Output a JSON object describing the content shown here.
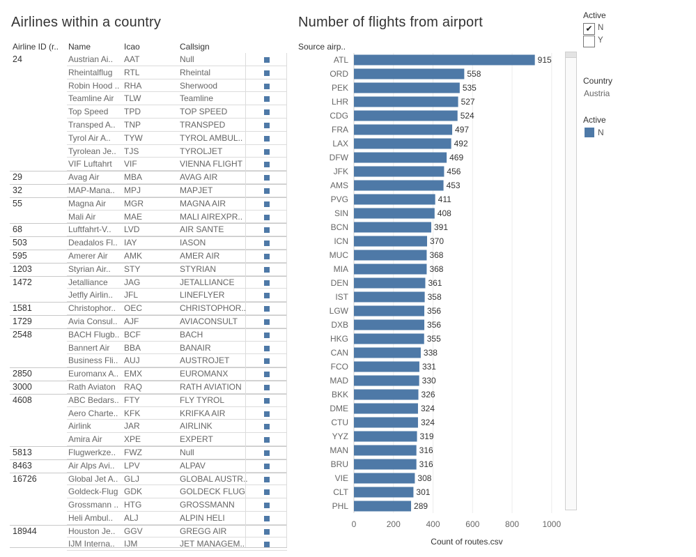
{
  "titles": {
    "table": "Airlines within a country",
    "chart": "Number of flights from airport"
  },
  "table": {
    "headers": {
      "id": "Airline ID (r..",
      "name": "Name",
      "icao": "Icao",
      "callsign": "Callsign"
    },
    "rows": [
      {
        "id": "24",
        "name": "Austrian Ai..",
        "icao": "AAT",
        "callsign": "Null"
      },
      {
        "id": "",
        "name": "Rheintalflug",
        "icao": "RTL",
        "callsign": "Rheintal"
      },
      {
        "id": "",
        "name": "Robin Hood ..",
        "icao": "RHA",
        "callsign": "Sherwood"
      },
      {
        "id": "",
        "name": "Teamline Air",
        "icao": "TLW",
        "callsign": "Teamline"
      },
      {
        "id": "",
        "name": "Top Speed",
        "icao": "TPD",
        "callsign": "TOP SPEED"
      },
      {
        "id": "",
        "name": "Transped A..",
        "icao": "TNP",
        "callsign": "TRANSPED"
      },
      {
        "id": "",
        "name": "Tyrol Air A..",
        "icao": "TYW",
        "callsign": "TYROL AMBUL.."
      },
      {
        "id": "",
        "name": "Tyrolean Je..",
        "icao": "TJS",
        "callsign": "TYROLJET"
      },
      {
        "id": "",
        "name": "VIF Luftahrt",
        "icao": "VIF",
        "callsign": "VIENNA FLIGHT"
      },
      {
        "id": "29",
        "name": "Avag Air",
        "icao": "MBA",
        "callsign": "AVAG AIR"
      },
      {
        "id": "32",
        "name": "MAP-Mana..",
        "icao": "MPJ",
        "callsign": "MAPJET"
      },
      {
        "id": "55",
        "name": "Magna Air",
        "icao": "MGR",
        "callsign": "MAGNA AIR"
      },
      {
        "id": "",
        "name": "Mali Air",
        "icao": "MAE",
        "callsign": "MALI AIREXPR.."
      },
      {
        "id": "68",
        "name": "Luftfahrt-V..",
        "icao": "LVD",
        "callsign": "AIR SANTE"
      },
      {
        "id": "503",
        "name": "Deadalos Fl..",
        "icao": "IAY",
        "callsign": "IASON"
      },
      {
        "id": "595",
        "name": "Amerer Air",
        "icao": "AMK",
        "callsign": "AMER AIR"
      },
      {
        "id": "1203",
        "name": "Styrian Air..",
        "icao": "STY",
        "callsign": "STYRIAN"
      },
      {
        "id": "1472",
        "name": "Jetalliance",
        "icao": "JAG",
        "callsign": "JETALLIANCE"
      },
      {
        "id": "",
        "name": "Jetfly Airlin..",
        "icao": "JFL",
        "callsign": "LINEFLYER"
      },
      {
        "id": "1581",
        "name": "Christophor..",
        "icao": "OEC",
        "callsign": "CHRISTOPHOR.."
      },
      {
        "id": "1729",
        "name": "Avia Consul..",
        "icao": "AJF",
        "callsign": "AVIACONSULT"
      },
      {
        "id": "2548",
        "name": "BACH Flugb..",
        "icao": "BCF",
        "callsign": "BACH"
      },
      {
        "id": "",
        "name": "Bannert Air",
        "icao": "BBA",
        "callsign": "BANAIR"
      },
      {
        "id": "",
        "name": "Business Fli..",
        "icao": "AUJ",
        "callsign": "AUSTROJET"
      },
      {
        "id": "2850",
        "name": "Euromanx A..",
        "icao": "EMX",
        "callsign": "EUROMANX"
      },
      {
        "id": "3000",
        "name": "Rath Aviaton",
        "icao": "RAQ",
        "callsign": "RATH AVIATION"
      },
      {
        "id": "4608",
        "name": "ABC Bedars..",
        "icao": "FTY",
        "callsign": "FLY TYROL"
      },
      {
        "id": "",
        "name": "Aero Charte..",
        "icao": "KFK",
        "callsign": "KRIFKA AIR"
      },
      {
        "id": "",
        "name": "Airlink",
        "icao": "JAR",
        "callsign": "AIRLINK"
      },
      {
        "id": "",
        "name": "Amira Air",
        "icao": "XPE",
        "callsign": "EXPERT"
      },
      {
        "id": "5813",
        "name": "Flugwerkze..",
        "icao": "FWZ",
        "callsign": "Null"
      },
      {
        "id": "8463",
        "name": "Air Alps Avi..",
        "icao": "LPV",
        "callsign": "ALPAV"
      },
      {
        "id": "16726",
        "name": "Global Jet A..",
        "icao": "GLJ",
        "callsign": "GLOBAL AUSTR.."
      },
      {
        "id": "",
        "name": "Goldeck-Flug",
        "icao": "GDK",
        "callsign": "GOLDECK FLUG"
      },
      {
        "id": "",
        "name": "Grossmann ..",
        "icao": "HTG",
        "callsign": "GROSSMANN"
      },
      {
        "id": "",
        "name": "Heli Ambul..",
        "icao": "ALJ",
        "callsign": "ALPIN HELI"
      },
      {
        "id": "18944",
        "name": "Houston Je..",
        "icao": "GGV",
        "callsign": "GREGG AIR"
      },
      {
        "id": "",
        "name": "IJM Interna..",
        "icao": "IJM",
        "callsign": "JET MANAGEM.."
      }
    ]
  },
  "chart_data": {
    "type": "bar",
    "orientation": "horizontal",
    "row_header": "Source airp..",
    "xlabel": "Count of routes.csv",
    "xlim": [
      0,
      1050
    ],
    "xticks": [
      0,
      200,
      400,
      600,
      800,
      1000
    ],
    "color": "#4e79a7",
    "categories": [
      "ATL",
      "ORD",
      "PEK",
      "LHR",
      "CDG",
      "FRA",
      "LAX",
      "DFW",
      "JFK",
      "AMS",
      "PVG",
      "SIN",
      "BCN",
      "ICN",
      "MUC",
      "MIA",
      "DEN",
      "IST",
      "LGW",
      "DXB",
      "HKG",
      "CAN",
      "FCO",
      "MAD",
      "BKK",
      "DME",
      "CTU",
      "YYZ",
      "MAN",
      "BRU",
      "VIE",
      "CLT",
      "PHL"
    ],
    "values": [
      915,
      558,
      535,
      527,
      524,
      497,
      492,
      469,
      456,
      453,
      411,
      408,
      391,
      370,
      368,
      368,
      361,
      358,
      356,
      356,
      355,
      338,
      331,
      330,
      326,
      324,
      324,
      319,
      316,
      316,
      308,
      301,
      289
    ]
  },
  "filters": {
    "active_title": "Active",
    "options": [
      {
        "label": "N",
        "checked": true,
        "mark": "✔"
      },
      {
        "label": "Y",
        "checked": false,
        "mark": ""
      }
    ],
    "country_title": "Country",
    "country_value": "Austria",
    "legend_title": "Active",
    "legend_item": "N",
    "legend_color": "#4e79a7"
  }
}
